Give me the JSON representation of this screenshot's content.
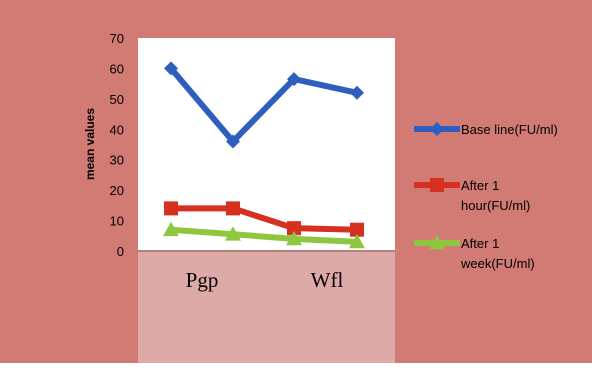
{
  "chart_data": {
    "type": "line",
    "title": "",
    "xlabel": "",
    "ylabel": "mean values",
    "ylim": [
      0,
      70
    ],
    "yticks": [
      "0",
      "10",
      "20",
      "30",
      "40",
      "50",
      "60",
      "70"
    ],
    "x_tick_labels": [
      "Pgp",
      "Wfl"
    ],
    "grid": false,
    "legend_placement": "right",
    "series": [
      {
        "name": "Base line(FU/ml)",
        "values": [
          60,
          36,
          56.5,
          52
        ],
        "color": "#2e5fbf",
        "marker": "diamond"
      },
      {
        "name": "After 1 hour(FU/ml)",
        "values": [
          14,
          14,
          7.5,
          7
        ],
        "color": "#d6301f",
        "marker": "square"
      },
      {
        "name": "After 1 week(FU/ml)",
        "values": [
          7,
          5.5,
          4,
          3
        ],
        "color": "#8ec63f",
        "marker": "triangle"
      }
    ]
  },
  "colors": {
    "background": "#d27a74",
    "plot_area": "#ffffff",
    "lower_band": "#deaaa7"
  }
}
